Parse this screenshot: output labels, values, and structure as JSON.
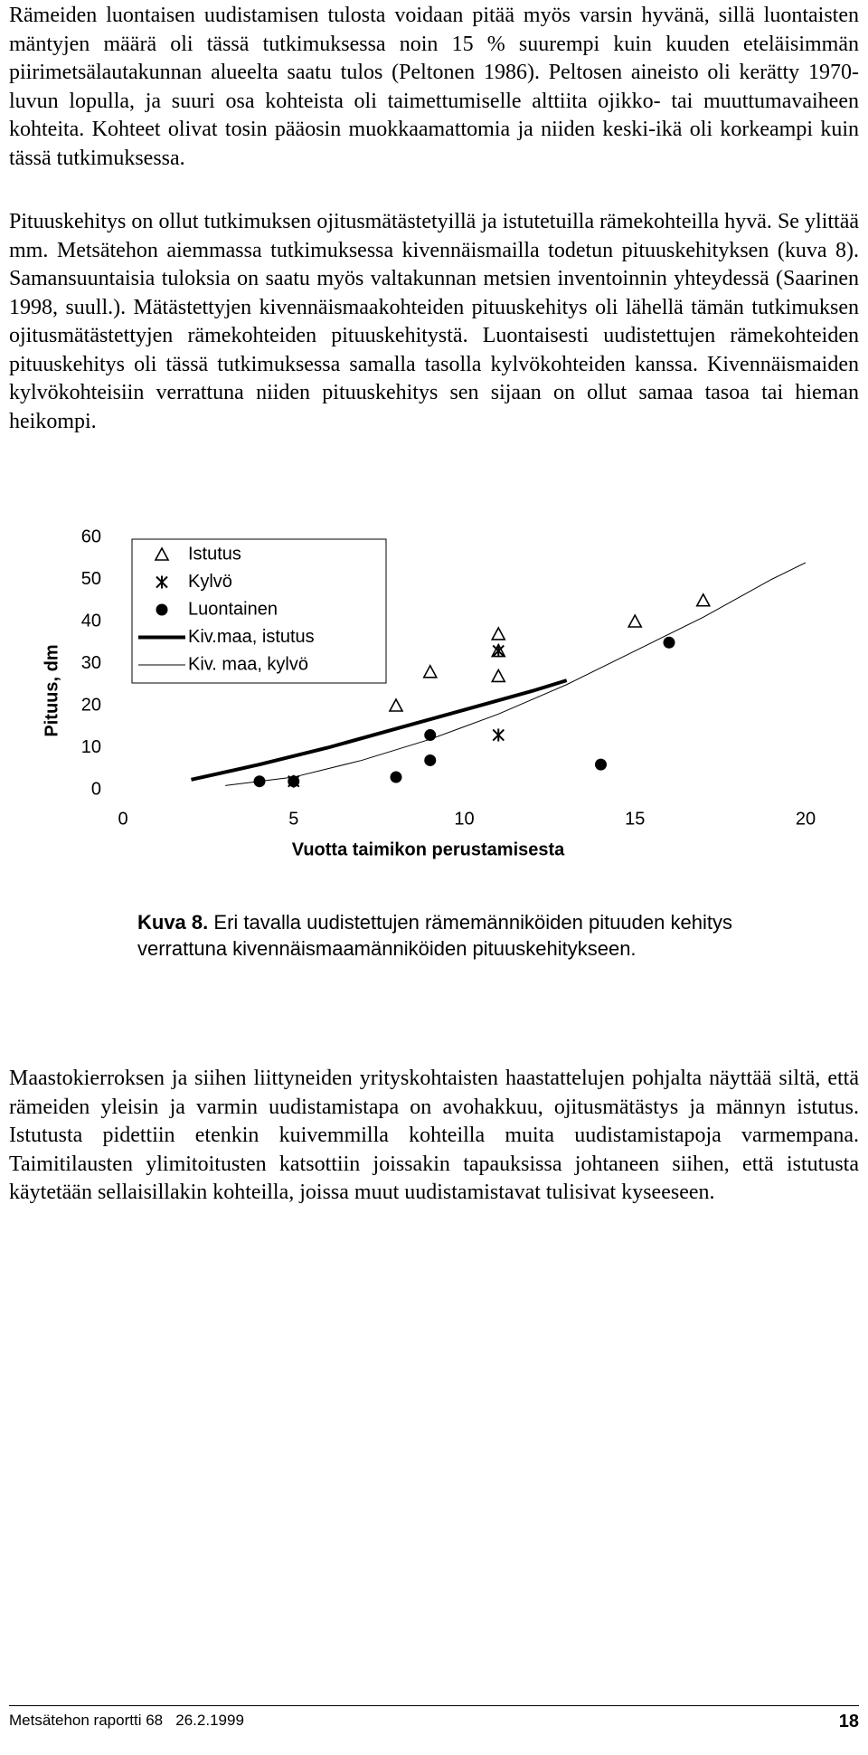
{
  "paragraphs": [
    "Rämeiden luontaisen uudistamisen tulosta voidaan pitää myös varsin hyvänä, sillä luontaisten mäntyjen määrä oli tässä tutkimuksessa noin 15 % suurempi kuin kuuden eteläisimmän piirimetsälautakunnan alueelta saatu tulos (Peltonen 1986). Peltosen aineisto oli kerätty 1970-luvun lopulla, ja suuri osa kohteista oli taimettumiselle alttiita ojikko- tai muuttumavaiheen kohteita. Kohteet olivat tosin pääosin muokkaamattomia ja niiden keski-ikä oli korkeampi kuin tässä tutkimuksessa.",
    "Pituuskehitys on ollut tutkimuksen ojitusmätästetyillä ja istutetuilla rämekohteilla hyvä. Se ylittää mm. Metsätehon aiemmassa tutkimuksessa kivennäismailla todetun pituuskehityksen (kuva 8). Samansuuntaisia tuloksia on saatu myös valtakunnan metsien inventoinnin yhteydessä (Saarinen 1998, suull.). Mätästettyjen kivennäismaakohteiden pituuskehitys oli lähellä tämän tutkimuksen ojitusmätästettyjen rämekohteiden pituuskehitystä. Luontaisesti uudistettujen rämekohteiden pituuskehitys oli tässä tutkimuksessa samalla tasolla kylvökohteiden kanssa. Kivennäismaiden kylvökohteisiin verrattuna niiden pituuskehitys sen sijaan on ollut samaa tasoa tai hieman heikompi.",
    "Maastokierroksen ja siihen liittyneiden yrityskohtaisten haastattelujen pohjalta näyttää siltä, että rämeiden yleisin ja varmin uudistamistapa on avohakkuu, ojitusmätästys ja männyn istutus. Istutusta pidettiin etenkin kuivemmilla kohteilla muita uudistamistapoja varmempana. Taimitilausten ylimitoitusten katsottiin joissakin tapauksissa johtaneen siihen, että istutusta käytetään sellaisillakin kohteilla, joissa muut uudistamistavat tulisivat kyseeseen."
  ],
  "chart_data": {
    "type": "scatter",
    "xlabel": "Vuotta taimikon perustamisesta",
    "ylabel": "Pituus, dm",
    "xlim": [
      0,
      20
    ],
    "xticks": [
      0,
      5,
      10,
      15,
      20
    ],
    "ylim": [
      0,
      60
    ],
    "yticks": [
      0,
      10,
      20,
      30,
      40,
      50,
      60
    ],
    "series": [
      {
        "name": "Istutus",
        "marker": "triangle",
        "color": "#000000",
        "x": [
          8,
          9,
          11,
          11,
          11,
          15,
          17
        ],
        "values": [
          20,
          28,
          37,
          33,
          27,
          40,
          45
        ]
      },
      {
        "name": "Kylvö",
        "marker": "asterisk",
        "color": "#000000",
        "x": [
          5,
          11,
          11
        ],
        "values": [
          2,
          33,
          13
        ]
      },
      {
        "name": "Luontainen",
        "marker": "dot",
        "color": "#000000",
        "x": [
          4,
          5,
          8,
          9,
          9,
          14,
          16
        ],
        "values": [
          2,
          2,
          3,
          13,
          7,
          6,
          35
        ]
      },
      {
        "name": "Kiv.maa, istutus",
        "marker": "line",
        "line_width": 4,
        "color": "#000000",
        "x": [
          2,
          4,
          6,
          8,
          10,
          12,
          13
        ],
        "values": [
          2.4,
          6,
          10,
          14.5,
          19,
          23.5,
          26
        ]
      },
      {
        "name": "Kiv. maa, kylvö",
        "marker": "line",
        "line_width": 1,
        "color": "#000000",
        "x": [
          3,
          5,
          7,
          9,
          11,
          13,
          15,
          17,
          19,
          20
        ],
        "values": [
          1,
          3,
          7,
          12,
          18,
          25,
          33,
          41,
          50,
          54
        ]
      }
    ]
  },
  "caption": {
    "label": "Kuva 8.",
    "text": "Eri tavalla uudistettujen rämemänniköiden pituuden kehitys verrattuna kivennäismaamänniköiden pituuskehitykseen."
  },
  "footer": {
    "left": "Metsätehon raportti 68   26.2.1999",
    "page": "18"
  }
}
